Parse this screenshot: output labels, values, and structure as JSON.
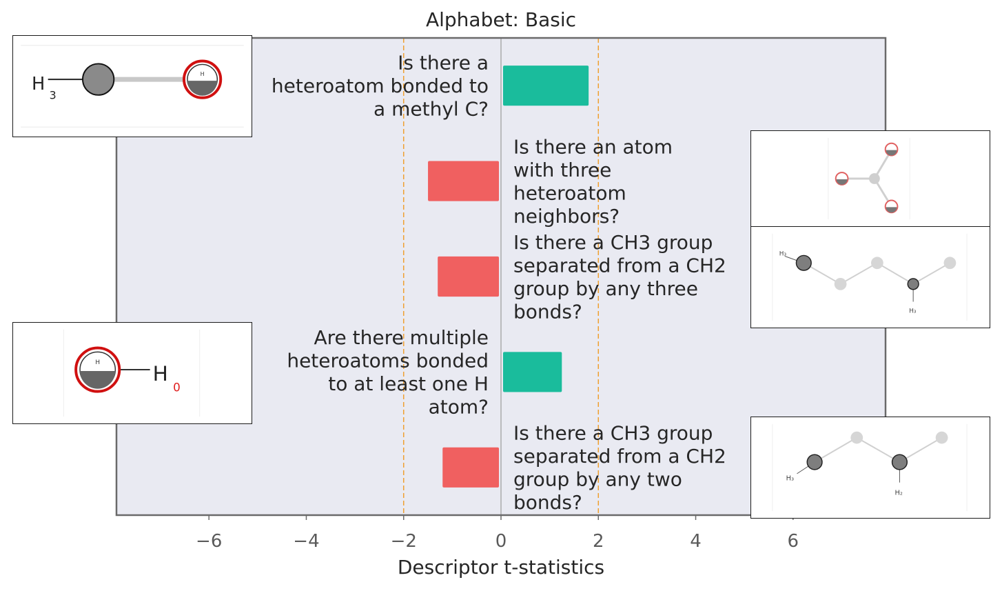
{
  "chart_data": {
    "type": "bar",
    "orientation": "horizontal",
    "title": "Alphabet: Basic",
    "xlabel": "Descriptor t-statistics",
    "ylabel": "",
    "xlim": [
      -7.9,
      7.9
    ],
    "xticks": [
      -6,
      -4,
      -2,
      0,
      2,
      4,
      6
    ],
    "xtick_labels": [
      "−6",
      "−4",
      "−2",
      "0",
      "2",
      "4",
      "6"
    ],
    "significance_lines": [
      -2,
      2
    ],
    "categories": [
      "Is there a heteroatom bonded to a methyl C?",
      "Is there an atom with three heteroatom neighbors?",
      "Is there a CH3 group separated from a CH2 group by any three bonds?",
      "Are there multiple heteroatoms bonded to at least one H atom?",
      "Is there a CH3 group separated from a CH2 group by any two bonds?"
    ],
    "label_lines": [
      [
        "Is there a",
        "heteroatom bonded to",
        "a methyl C?"
      ],
      [
        "Is there an atom",
        "with three",
        "heteroatom",
        "neighbors?"
      ],
      [
        "Is there a CH3 group",
        "separated from a CH2",
        "group by any three",
        "bonds?"
      ],
      [
        "Are there multiple",
        "heteroatoms bonded",
        "to at least one H",
        "atom?"
      ],
      [
        "Is there a CH3 group",
        "separated from a CH2",
        "group by any two",
        "bonds?"
      ]
    ],
    "values": [
      1.8,
      -1.5,
      -1.3,
      1.25,
      -1.2
    ],
    "colors": {
      "positive": "#1abc9c",
      "negative": "#f06060",
      "threshold": "#f0a030",
      "axes_bg": "#e9eaf2"
    },
    "grid": false
  },
  "insets": [
    {
      "labels": [
        "H",
        "3"
      ]
    },
    {
      "labels": []
    },
    {
      "labels": [
        "H₃",
        "H₃"
      ]
    },
    {
      "labels": [
        "H",
        "0"
      ]
    },
    {
      "labels": [
        "H₃",
        "H₂"
      ]
    }
  ]
}
